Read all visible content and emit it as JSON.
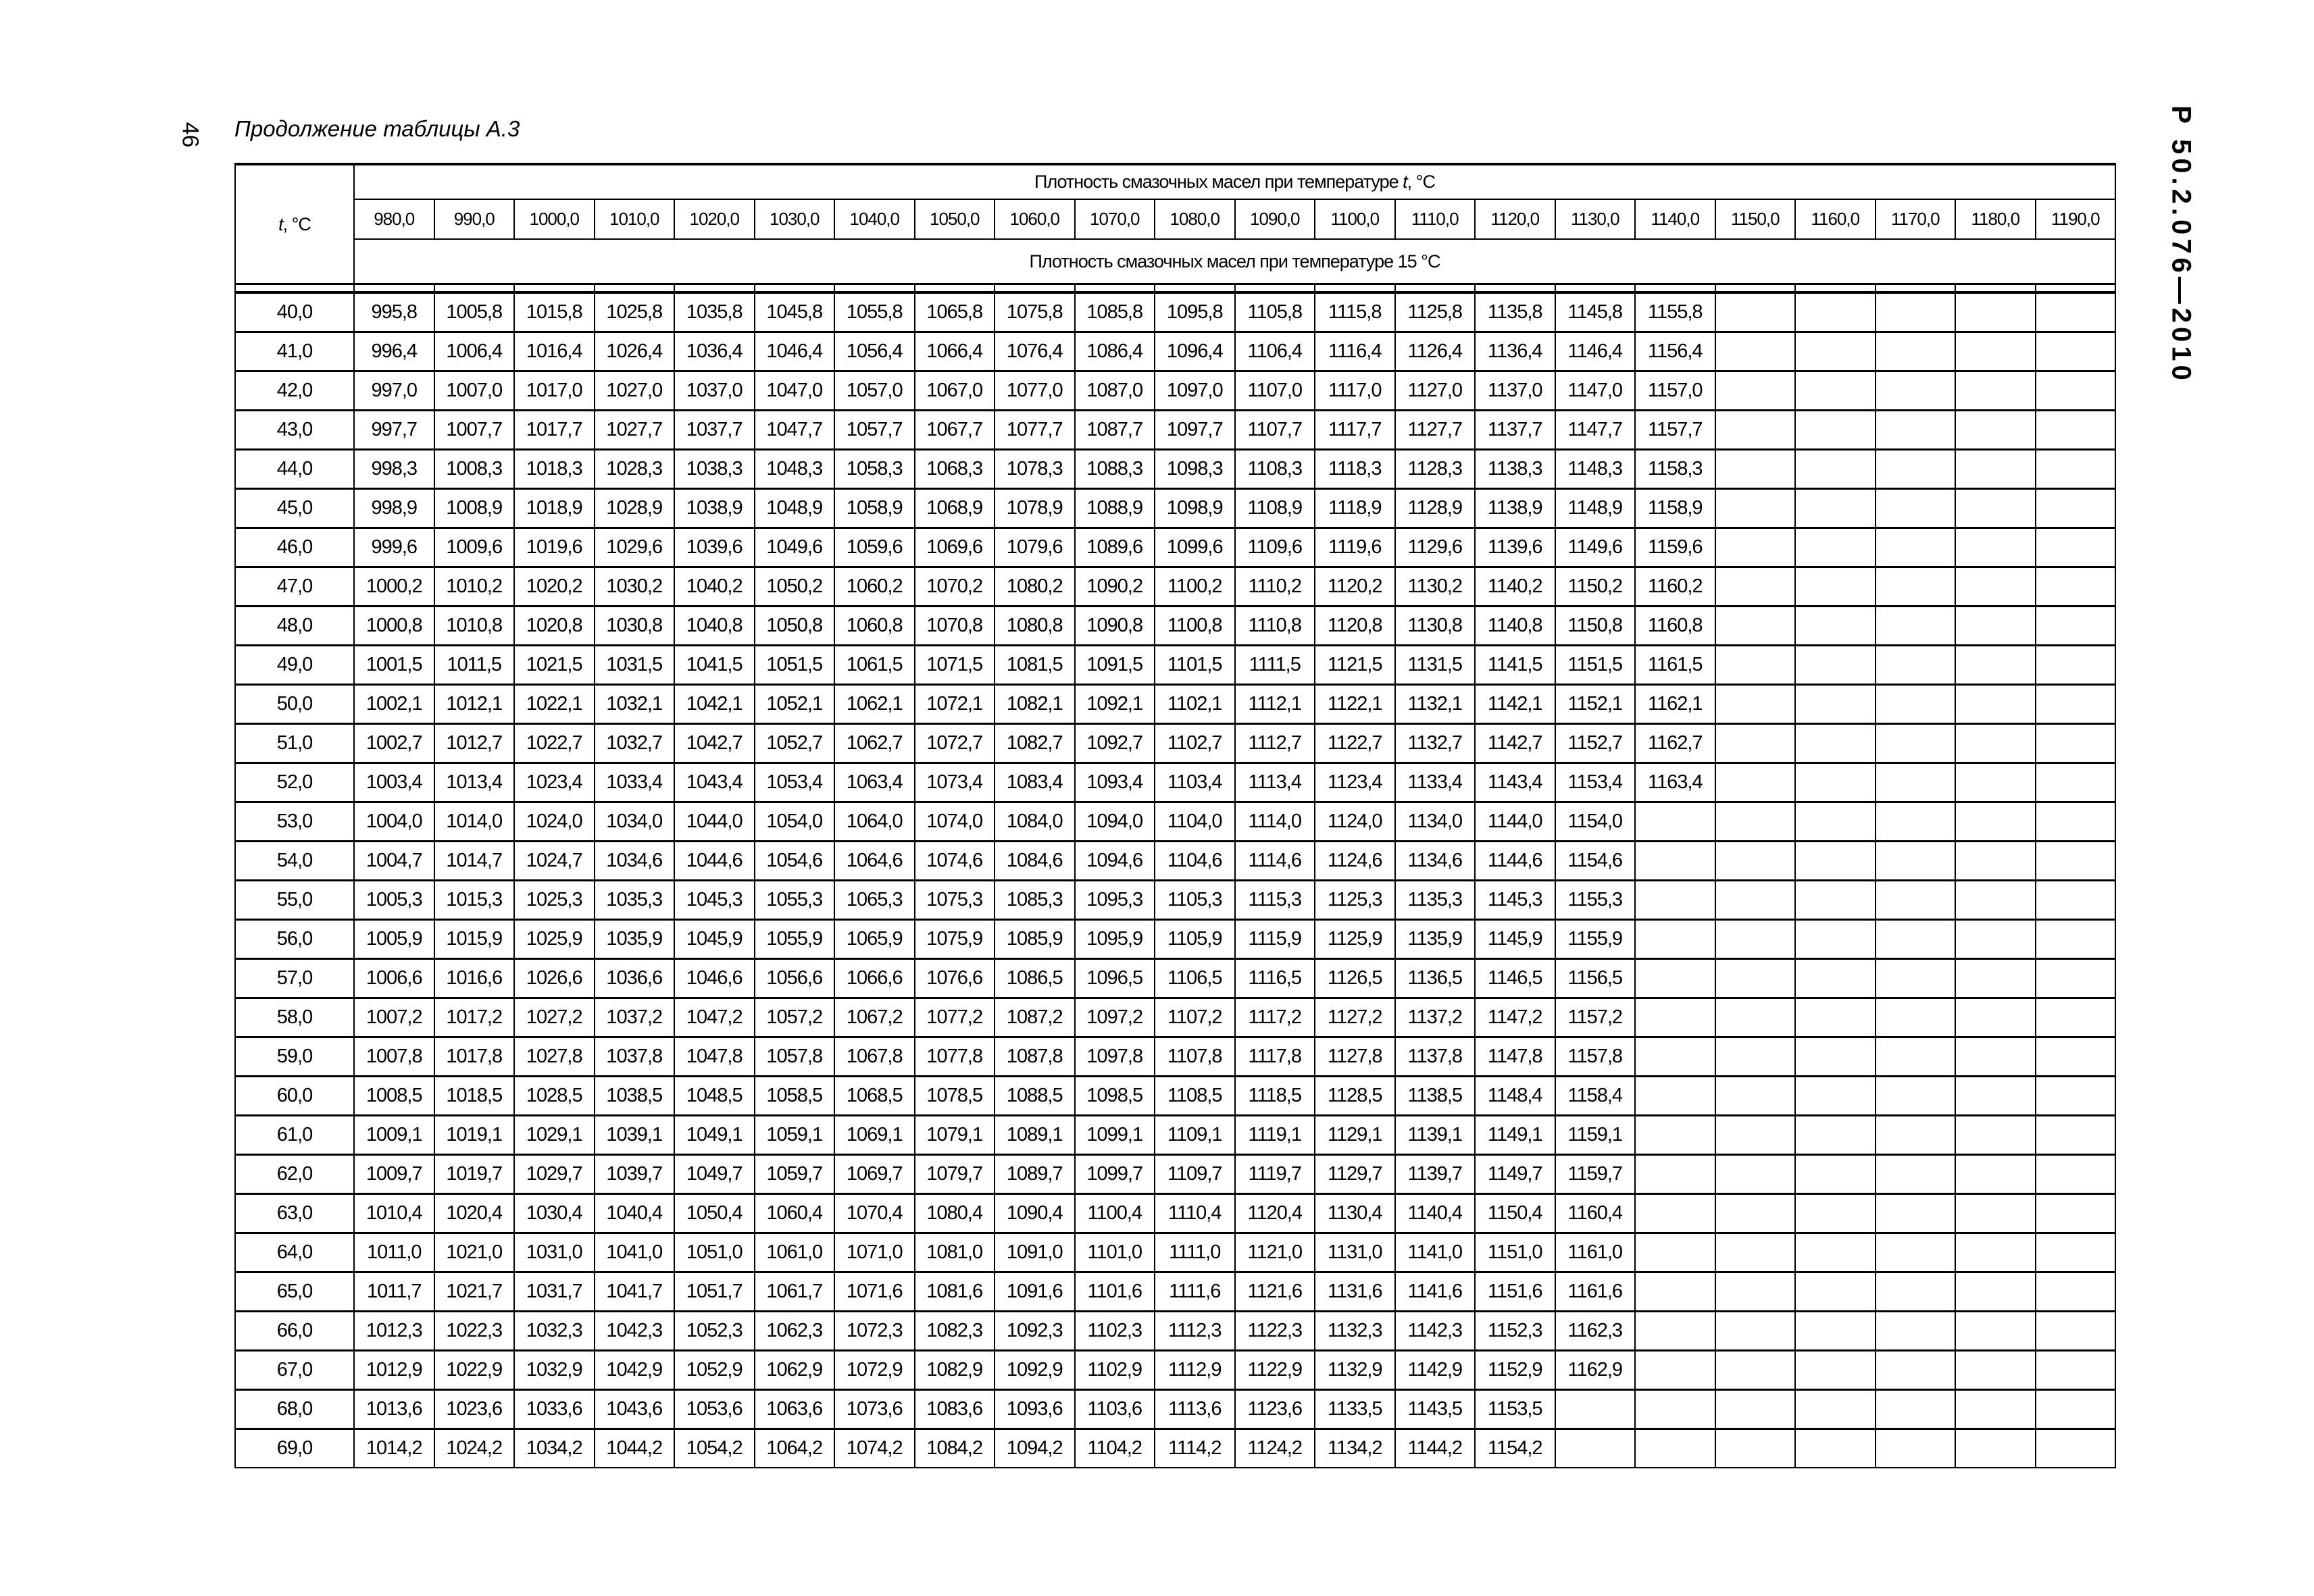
{
  "page_number": "46",
  "caption": "Продолжение таблицы А.3",
  "document_code": "Р 50.2.076—2010",
  "table": {
    "row_header": {
      "var": "t",
      "unit": ", °C"
    },
    "top_header": {
      "text": "Плотность смазочных масел при температуре ",
      "var": "t",
      "unit": ", °C"
    },
    "bottom_header": "Плотность смазочных масел при температуре  15 °C",
    "columns": [
      "980,0",
      "990,0",
      "1000,0",
      "1010,0",
      "1020,0",
      "1030,0",
      "1040,0",
      "1050,0",
      "1060,0",
      "1070,0",
      "1080,0",
      "1090,0",
      "1100,0",
      "1110,0",
      "1120,0",
      "1130,0",
      "1140,0",
      "1150,0",
      "1160,0",
      "1170,0",
      "1180,0",
      "1190,0"
    ],
    "rows": [
      {
        "t": "40,0",
        "v": [
          "995,8",
          "1005,8",
          "1015,8",
          "1025,8",
          "1035,8",
          "1045,8",
          "1055,8",
          "1065,8",
          "1075,8",
          "1085,8",
          "1095,8",
          "1105,8",
          "1115,8",
          "1125,8",
          "1135,8",
          "1145,8",
          "1155,8"
        ]
      },
      {
        "t": "41,0",
        "v": [
          "996,4",
          "1006,4",
          "1016,4",
          "1026,4",
          "1036,4",
          "1046,4",
          "1056,4",
          "1066,4",
          "1076,4",
          "1086,4",
          "1096,4",
          "1106,4",
          "1116,4",
          "1126,4",
          "1136,4",
          "1146,4",
          "1156,4"
        ]
      },
      {
        "t": "42,0",
        "v": [
          "997,0",
          "1007,0",
          "1017,0",
          "1027,0",
          "1037,0",
          "1047,0",
          "1057,0",
          "1067,0",
          "1077,0",
          "1087,0",
          "1097,0",
          "1107,0",
          "1117,0",
          "1127,0",
          "1137,0",
          "1147,0",
          "1157,0"
        ]
      },
      {
        "t": "43,0",
        "v": [
          "997,7",
          "1007,7",
          "1017,7",
          "1027,7",
          "1037,7",
          "1047,7",
          "1057,7",
          "1067,7",
          "1077,7",
          "1087,7",
          "1097,7",
          "1107,7",
          "1117,7",
          "1127,7",
          "1137,7",
          "1147,7",
          "1157,7"
        ]
      },
      {
        "t": "44,0",
        "v": [
          "998,3",
          "1008,3",
          "1018,3",
          "1028,3",
          "1038,3",
          "1048,3",
          "1058,3",
          "1068,3",
          "1078,3",
          "1088,3",
          "1098,3",
          "1108,3",
          "1118,3",
          "1128,3",
          "1138,3",
          "1148,3",
          "1158,3"
        ]
      },
      {
        "t": "45,0",
        "v": [
          "998,9",
          "1008,9",
          "1018,9",
          "1028,9",
          "1038,9",
          "1048,9",
          "1058,9",
          "1068,9",
          "1078,9",
          "1088,9",
          "1098,9",
          "1108,9",
          "1118,9",
          "1128,9",
          "1138,9",
          "1148,9",
          "1158,9"
        ]
      },
      {
        "t": "46,0",
        "v": [
          "999,6",
          "1009,6",
          "1019,6",
          "1029,6",
          "1039,6",
          "1049,6",
          "1059,6",
          "1069,6",
          "1079,6",
          "1089,6",
          "1099,6",
          "1109,6",
          "1119,6",
          "1129,6",
          "1139,6",
          "1149,6",
          "1159,6"
        ]
      },
      {
        "t": "47,0",
        "v": [
          "1000,2",
          "1010,2",
          "1020,2",
          "1030,2",
          "1040,2",
          "1050,2",
          "1060,2",
          "1070,2",
          "1080,2",
          "1090,2",
          "1100,2",
          "1110,2",
          "1120,2",
          "1130,2",
          "1140,2",
          "1150,2",
          "1160,2"
        ]
      },
      {
        "t": "48,0",
        "v": [
          "1000,8",
          "1010,8",
          "1020,8",
          "1030,8",
          "1040,8",
          "1050,8",
          "1060,8",
          "1070,8",
          "1080,8",
          "1090,8",
          "1100,8",
          "1110,8",
          "1120,8",
          "1130,8",
          "1140,8",
          "1150,8",
          "1160,8"
        ]
      },
      {
        "t": "49,0",
        "v": [
          "1001,5",
          "1011,5",
          "1021,5",
          "1031,5",
          "1041,5",
          "1051,5",
          "1061,5",
          "1071,5",
          "1081,5",
          "1091,5",
          "1101,5",
          "1111,5",
          "1121,5",
          "1131,5",
          "1141,5",
          "1151,5",
          "1161,5"
        ]
      },
      {
        "t": "50,0",
        "v": [
          "1002,1",
          "1012,1",
          "1022,1",
          "1032,1",
          "1042,1",
          "1052,1",
          "1062,1",
          "1072,1",
          "1082,1",
          "1092,1",
          "1102,1",
          "1112,1",
          "1122,1",
          "1132,1",
          "1142,1",
          "1152,1",
          "1162,1"
        ]
      },
      {
        "t": "51,0",
        "v": [
          "1002,7",
          "1012,7",
          "1022,7",
          "1032,7",
          "1042,7",
          "1052,7",
          "1062,7",
          "1072,7",
          "1082,7",
          "1092,7",
          "1102,7",
          "1112,7",
          "1122,7",
          "1132,7",
          "1142,7",
          "1152,7",
          "1162,7"
        ]
      },
      {
        "t": "52,0",
        "v": [
          "1003,4",
          "1013,4",
          "1023,4",
          "1033,4",
          "1043,4",
          "1053,4",
          "1063,4",
          "1073,4",
          "1083,4",
          "1093,4",
          "1103,4",
          "1113,4",
          "1123,4",
          "1133,4",
          "1143,4",
          "1153,4",
          "1163,4"
        ]
      },
      {
        "t": "53,0",
        "v": [
          "1004,0",
          "1014,0",
          "1024,0",
          "1034,0",
          "1044,0",
          "1054,0",
          "1064,0",
          "1074,0",
          "1084,0",
          "1094,0",
          "1104,0",
          "1114,0",
          "1124,0",
          "1134,0",
          "1144,0",
          "1154,0"
        ]
      },
      {
        "t": "54,0",
        "v": [
          "1004,7",
          "1014,7",
          "1024,7",
          "1034,6",
          "1044,6",
          "1054,6",
          "1064,6",
          "1074,6",
          "1084,6",
          "1094,6",
          "1104,6",
          "1114,6",
          "1124,6",
          "1134,6",
          "1144,6",
          "1154,6"
        ]
      },
      {
        "t": "55,0",
        "v": [
          "1005,3",
          "1015,3",
          "1025,3",
          "1035,3",
          "1045,3",
          "1055,3",
          "1065,3",
          "1075,3",
          "1085,3",
          "1095,3",
          "1105,3",
          "1115,3",
          "1125,3",
          "1135,3",
          "1145,3",
          "1155,3"
        ]
      },
      {
        "t": "56,0",
        "v": [
          "1005,9",
          "1015,9",
          "1025,9",
          "1035,9",
          "1045,9",
          "1055,9",
          "1065,9",
          "1075,9",
          "1085,9",
          "1095,9",
          "1105,9",
          "1115,9",
          "1125,9",
          "1135,9",
          "1145,9",
          "1155,9"
        ]
      },
      {
        "t": "57,0",
        "v": [
          "1006,6",
          "1016,6",
          "1026,6",
          "1036,6",
          "1046,6",
          "1056,6",
          "1066,6",
          "1076,6",
          "1086,5",
          "1096,5",
          "1106,5",
          "1116,5",
          "1126,5",
          "1136,5",
          "1146,5",
          "1156,5"
        ]
      },
      {
        "t": "58,0",
        "v": [
          "1007,2",
          "1017,2",
          "1027,2",
          "1037,2",
          "1047,2",
          "1057,2",
          "1067,2",
          "1077,2",
          "1087,2",
          "1097,2",
          "1107,2",
          "1117,2",
          "1127,2",
          "1137,2",
          "1147,2",
          "1157,2"
        ]
      },
      {
        "t": "59,0",
        "v": [
          "1007,8",
          "1017,8",
          "1027,8",
          "1037,8",
          "1047,8",
          "1057,8",
          "1067,8",
          "1077,8",
          "1087,8",
          "1097,8",
          "1107,8",
          "1117,8",
          "1127,8",
          "1137,8",
          "1147,8",
          "1157,8"
        ]
      },
      {
        "t": "60,0",
        "v": [
          "1008,5",
          "1018,5",
          "1028,5",
          "1038,5",
          "1048,5",
          "1058,5",
          "1068,5",
          "1078,5",
          "1088,5",
          "1098,5",
          "1108,5",
          "1118,5",
          "1128,5",
          "1138,5",
          "1148,4",
          "1158,4"
        ]
      },
      {
        "t": "61,0",
        "v": [
          "1009,1",
          "1019,1",
          "1029,1",
          "1039,1",
          "1049,1",
          "1059,1",
          "1069,1",
          "1079,1",
          "1089,1",
          "1099,1",
          "1109,1",
          "1119,1",
          "1129,1",
          "1139,1",
          "1149,1",
          "1159,1"
        ]
      },
      {
        "t": "62,0",
        "v": [
          "1009,7",
          "1019,7",
          "1029,7",
          "1039,7",
          "1049,7",
          "1059,7",
          "1069,7",
          "1079,7",
          "1089,7",
          "1099,7",
          "1109,7",
          "1119,7",
          "1129,7",
          "1139,7",
          "1149,7",
          "1159,7"
        ]
      },
      {
        "t": "63,0",
        "v": [
          "1010,4",
          "1020,4",
          "1030,4",
          "1040,4",
          "1050,4",
          "1060,4",
          "1070,4",
          "1080,4",
          "1090,4",
          "1100,4",
          "1110,4",
          "1120,4",
          "1130,4",
          "1140,4",
          "1150,4",
          "1160,4"
        ]
      },
      {
        "t": "64,0",
        "v": [
          "1011,0",
          "1021,0",
          "1031,0",
          "1041,0",
          "1051,0",
          "1061,0",
          "1071,0",
          "1081,0",
          "1091,0",
          "1101,0",
          "1111,0",
          "1121,0",
          "1131,0",
          "1141,0",
          "1151,0",
          "1161,0"
        ]
      },
      {
        "t": "65,0",
        "v": [
          "1011,7",
          "1021,7",
          "1031,7",
          "1041,7",
          "1051,7",
          "1061,7",
          "1071,6",
          "1081,6",
          "1091,6",
          "1101,6",
          "1111,6",
          "1121,6",
          "1131,6",
          "1141,6",
          "1151,6",
          "1161,6"
        ]
      },
      {
        "t": "66,0",
        "v": [
          "1012,3",
          "1022,3",
          "1032,3",
          "1042,3",
          "1052,3",
          "1062,3",
          "1072,3",
          "1082,3",
          "1092,3",
          "1102,3",
          "1112,3",
          "1122,3",
          "1132,3",
          "1142,3",
          "1152,3",
          "1162,3"
        ]
      },
      {
        "t": "67,0",
        "v": [
          "1012,9",
          "1022,9",
          "1032,9",
          "1042,9",
          "1052,9",
          "1062,9",
          "1072,9",
          "1082,9",
          "1092,9",
          "1102,9",
          "1112,9",
          "1122,9",
          "1132,9",
          "1142,9",
          "1152,9",
          "1162,9"
        ]
      },
      {
        "t": "68,0",
        "v": [
          "1013,6",
          "1023,6",
          "1033,6",
          "1043,6",
          "1053,6",
          "1063,6",
          "1073,6",
          "1083,6",
          "1093,6",
          "1103,6",
          "1113,6",
          "1123,6",
          "1133,5",
          "1143,5",
          "1153,5"
        ]
      },
      {
        "t": "69,0",
        "v": [
          "1014,2",
          "1024,2",
          "1034,2",
          "1044,2",
          "1054,2",
          "1064,2",
          "1074,2",
          "1084,2",
          "1094,2",
          "1104,2",
          "1114,2",
          "1124,2",
          "1134,2",
          "1144,2",
          "1154,2"
        ]
      }
    ]
  }
}
